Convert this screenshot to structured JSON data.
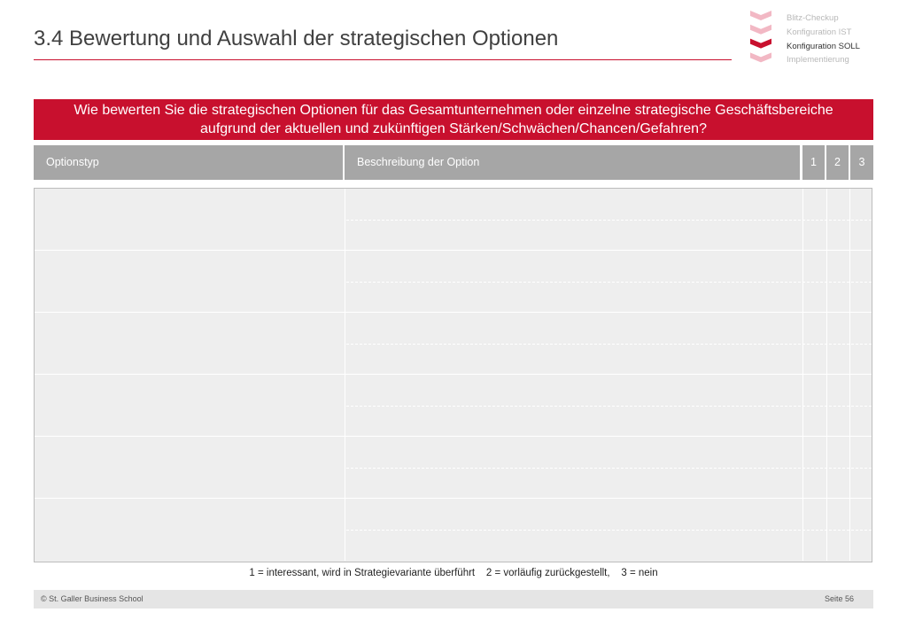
{
  "header": {
    "title": "3.4 Bewertung und Auswahl der strategischen Optionen"
  },
  "nav": {
    "items": [
      {
        "label": "Blitz-Checkup",
        "active": false
      },
      {
        "label": "Konfiguration IST",
        "active": false
      },
      {
        "label": "Konfiguration SOLL",
        "active": true
      },
      {
        "label": "Implementierung",
        "active": false
      }
    ]
  },
  "question": {
    "line1": "Wie bewerten Sie die strategischen Optionen für das Gesamtunternehmen oder einzelne strategische Geschäftsbereiche",
    "line2": "aufgrund der aktuellen und zukünftigen Stärken/Schwächen/Chancen/Gefahren?"
  },
  "table": {
    "columns": [
      "Optionstyp",
      "Beschreibung der Option",
      "1",
      "2",
      "3"
    ],
    "row_count": 6
  },
  "legend": "1 = interessant, wird in Strategievariante überführt    2 = vorläufig zurückgestellt,    3 = nein",
  "footer": {
    "copyright": "© St. Galler Business School",
    "page": "Seite 56"
  },
  "colors": {
    "accent": "#c8102e",
    "header_gray": "#a6a6a6",
    "cell_gray": "#eeeeee",
    "chevron_light": "#f2b8c4",
    "chevron_dark": "#c8102e"
  }
}
